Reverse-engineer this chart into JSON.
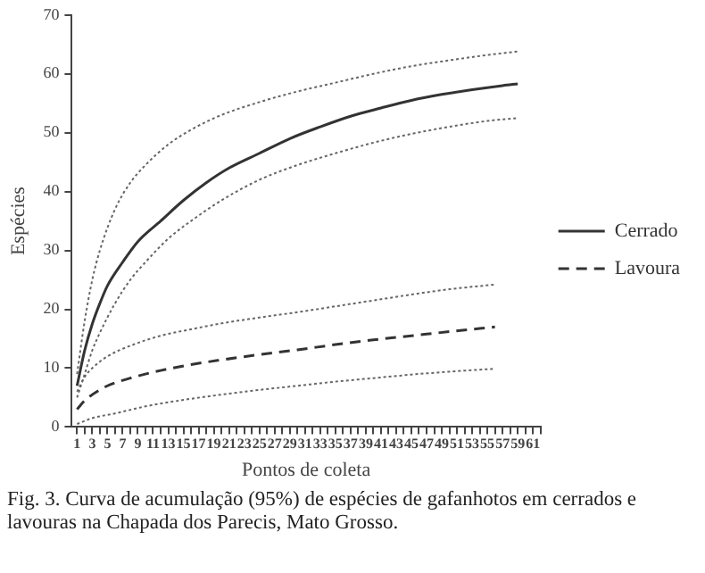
{
  "chart_data": {
    "type": "line",
    "xlabel": "Pontos de coleta",
    "ylabel": "Espécies",
    "xlim": [
      0.3,
      62
    ],
    "ylim": [
      0,
      70
    ],
    "yticks": [
      0,
      10,
      20,
      30,
      40,
      50,
      60,
      70
    ],
    "xticks": [
      1,
      {
        "value": 2,
        "label": null
      },
      3,
      {
        "value": 4,
        "label": null
      },
      5,
      {
        "value": 6,
        "label": null
      },
      7,
      {
        "value": 8,
        "label": null
      },
      9,
      {
        "value": 10,
        "label": null
      },
      11,
      {
        "value": 12,
        "label": null
      },
      13,
      {
        "value": 14,
        "label": null
      },
      15,
      {
        "value": 16,
        "label": null
      },
      17,
      {
        "value": 18,
        "label": null
      },
      19,
      {
        "value": 20,
        "label": null
      },
      21,
      {
        "value": 22,
        "label": null
      },
      23,
      {
        "value": 24,
        "label": null
      },
      25,
      {
        "value": 26,
        "label": null
      },
      27,
      {
        "value": 28,
        "label": null
      },
      29,
      {
        "value": 30,
        "label": null
      },
      31,
      {
        "value": 32,
        "label": null
      },
      33,
      {
        "value": 34,
        "label": null
      },
      35,
      {
        "value": 36,
        "label": null
      },
      37,
      {
        "value": 38,
        "label": null
      },
      39,
      {
        "value": 40,
        "label": null
      },
      41,
      {
        "value": 42,
        "label": null
      },
      43,
      {
        "value": 44,
        "label": null
      },
      45,
      {
        "value": 46,
        "label": null
      },
      47,
      {
        "value": 48,
        "label": null
      },
      49,
      {
        "value": 50,
        "label": null
      },
      51,
      {
        "value": 52,
        "label": null
      },
      53,
      {
        "value": 54,
        "label": null
      },
      55,
      {
        "value": 56,
        "label": null
      },
      57,
      {
        "value": 58,
        "label": null
      },
      59,
      {
        "value": 60,
        "label": null
      },
      61,
      {
        "value": 62,
        "label": null
      }
    ],
    "grid": false,
    "legend": "right",
    "marker": "none",
    "series": [
      {
        "name": "Cerrado",
        "color": "#333333",
        "line_style": "solid",
        "x": [
          1,
          2,
          3,
          4,
          5,
          7,
          9,
          12,
          15,
          18,
          21,
          25,
          29,
          33,
          37,
          41,
          45,
          49,
          53,
          57,
          59
        ],
        "values": [
          7,
          13,
          17.5,
          21,
          24,
          28,
          31.5,
          35,
          38.5,
          41.5,
          44,
          46.5,
          49,
          51,
          52.8,
          54.2,
          55.5,
          56.5,
          57.3,
          58,
          58.3
        ]
      },
      {
        "color": "#666666",
        "line_style": "dotted",
        "x": [
          1,
          2,
          3,
          4,
          6,
          8,
          10,
          13,
          16,
          20,
          25,
          30,
          35,
          40,
          45,
          50,
          55,
          59
        ],
        "values": [
          9,
          18,
          25,
          30,
          37,
          41.5,
          44.5,
          48,
          50.5,
          53,
          55.2,
          57,
          58.5,
          60,
          61.3,
          62.3,
          63.2,
          63.8
        ]
      },
      {
        "color": "#666666",
        "line_style": "dotted",
        "x": [
          1,
          2,
          3,
          4,
          6,
          8,
          10,
          13,
          16,
          20,
          25,
          30,
          35,
          40,
          45,
          50,
          55,
          59
        ],
        "values": [
          5,
          9,
          13,
          16,
          21,
          25,
          28,
          32,
          35,
          38.5,
          42,
          44.5,
          46.5,
          48.3,
          49.8,
          51,
          52,
          52.5
        ]
      },
      {
        "name": "Lavoura",
        "color": "#333333",
        "line_style": "dashed",
        "x": [
          1,
          2,
          3,
          5,
          8,
          12,
          16,
          20,
          25,
          30,
          35,
          40,
          45,
          50,
          56
        ],
        "values": [
          3,
          4.5,
          5.5,
          7,
          8.3,
          9.6,
          10.6,
          11.4,
          12.3,
          13.1,
          14,
          14.8,
          15.5,
          16.2,
          17
        ]
      },
      {
        "color": "#666666",
        "line_style": "dotted",
        "x": [
          1,
          2,
          3,
          5,
          8,
          12,
          16,
          20,
          25,
          30,
          35,
          40,
          45,
          50,
          56
        ],
        "values": [
          6,
          8.5,
          10,
          12,
          13.8,
          15.5,
          16.6,
          17.6,
          18.6,
          19.5,
          20.5,
          21.5,
          22.5,
          23.4,
          24.2
        ]
      },
      {
        "color": "#666666",
        "line_style": "dotted",
        "x": [
          1,
          3,
          6,
          10,
          15,
          20,
          25,
          30,
          35,
          40,
          45,
          50,
          56
        ],
        "values": [
          0.5,
          1.5,
          2.3,
          3.5,
          4.6,
          5.5,
          6.3,
          7,
          7.7,
          8.3,
          8.9,
          9.4,
          9.9
        ]
      }
    ],
    "annotations": [
      "Fig. 3. Curva de acumulação (95%) de espécies de gafanhotos em cerrados e lavouras na Chapada dos Parecis, Mato Grosso."
    ]
  }
}
